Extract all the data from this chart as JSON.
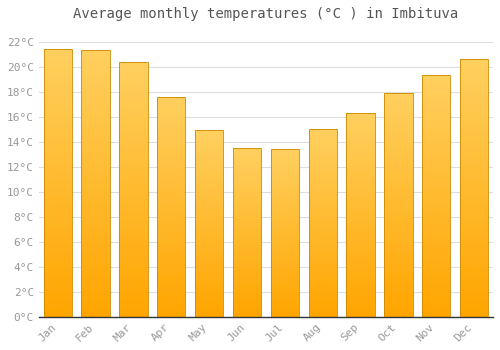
{
  "title": "Average monthly temperatures (°C ) in Imbituva",
  "months": [
    "Jan",
    "Feb",
    "Mar",
    "Apr",
    "May",
    "Jun",
    "Jul",
    "Aug",
    "Sep",
    "Oct",
    "Nov",
    "Dec"
  ],
  "values": [
    21.4,
    21.3,
    20.4,
    17.6,
    14.9,
    13.5,
    13.4,
    15.0,
    16.3,
    17.9,
    19.3,
    20.6
  ],
  "bar_color_bottom": "#FFA500",
  "bar_color_top": "#FFD060",
  "bar_edge_color": "#CC8800",
  "background_color": "#FFFFFF",
  "grid_color": "#DDDDDD",
  "ylim": [
    0,
    23
  ],
  "yticks": [
    0,
    2,
    4,
    6,
    8,
    10,
    12,
    14,
    16,
    18,
    20,
    22
  ],
  "title_fontsize": 10,
  "tick_fontsize": 8,
  "tick_color": "#999999",
  "title_color": "#555555",
  "font_family": "monospace",
  "bar_width": 0.75
}
